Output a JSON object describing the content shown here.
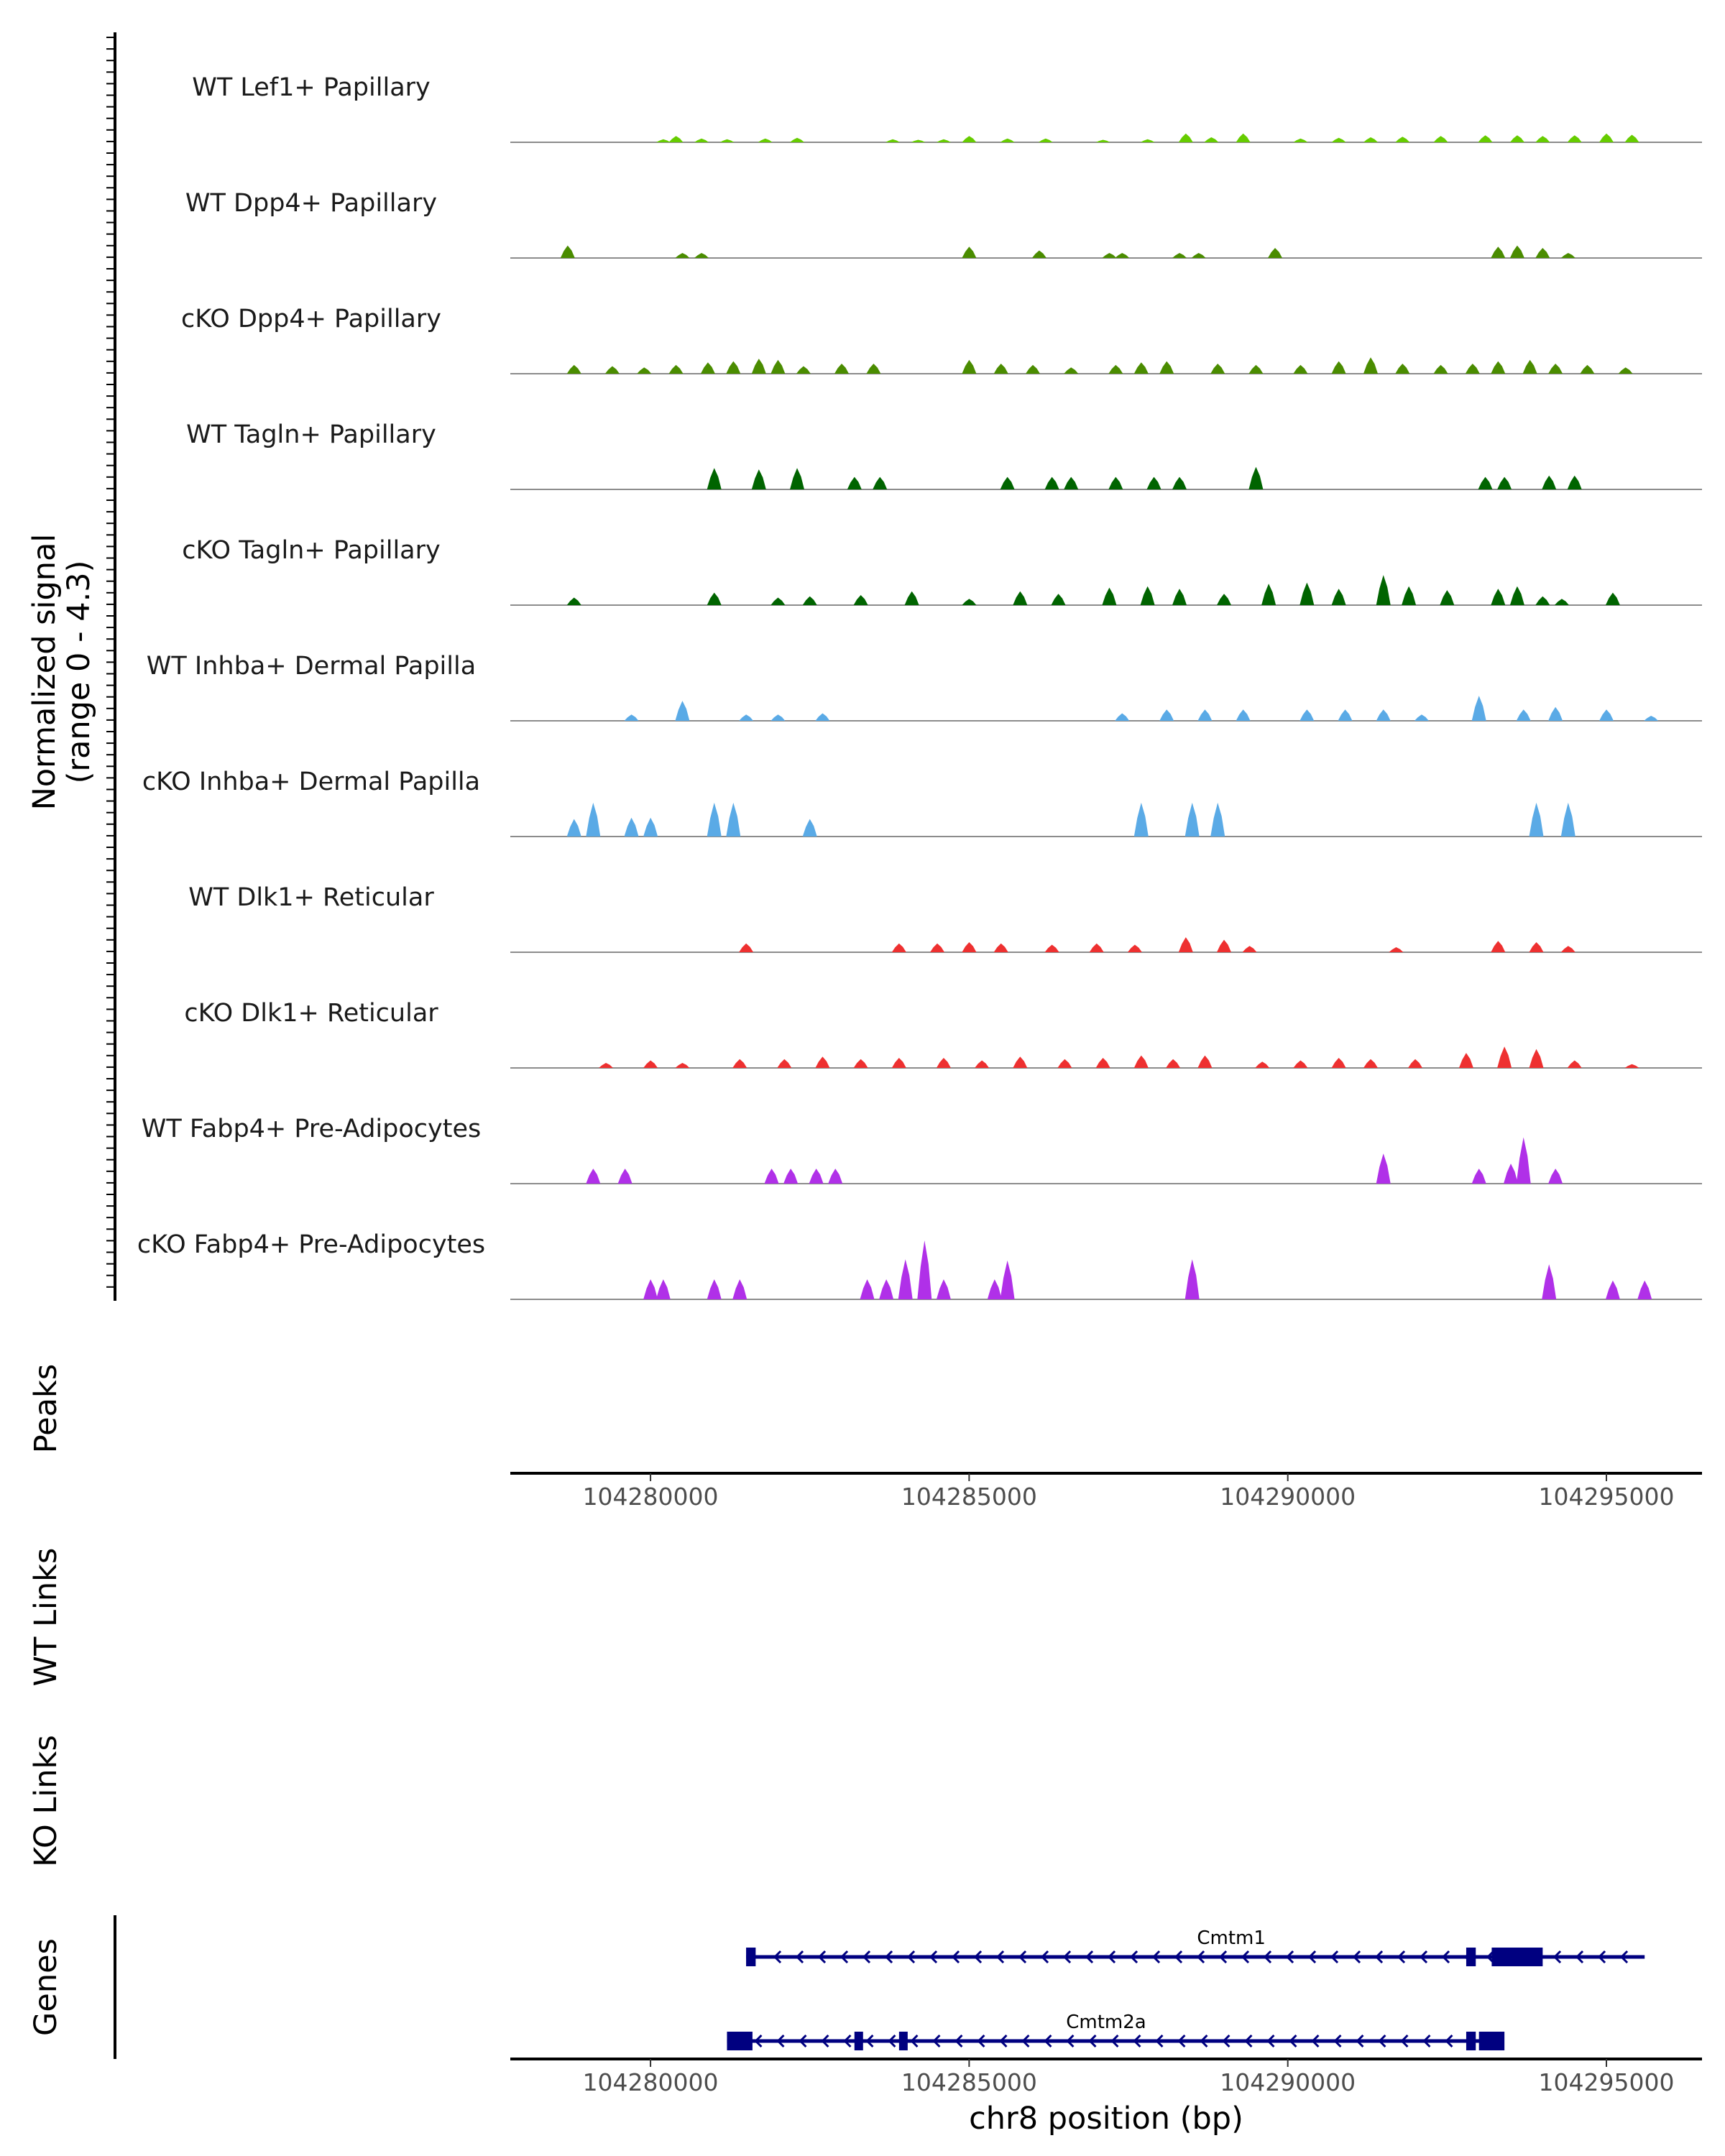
{
  "chart_data": {
    "type": "area",
    "description_region": "chr8:104277800-104296500",
    "xlim": [
      104277800,
      104296500
    ],
    "ylabel_line1": "Normalized signal",
    "ylabel_line2": "(range 0 - 4.3)",
    "y_range": [
      0,
      4.3
    ],
    "xlabel": "chr8 position (bp)",
    "x_ticks": [
      104280000,
      104285000,
      104290000,
      104295000
    ],
    "x_tick_labels": [
      "104280000",
      "104285000",
      "104290000",
      "104295000"
    ],
    "section_labels": {
      "peaks": "Peaks",
      "wt_links": "WT Links",
      "ko_links": "KO Links",
      "genes": "Genes"
    },
    "tracks": [
      {
        "name": "WT Lef1+ Papillary",
        "color": "#66CC00",
        "peaks": [
          [
            104280200,
            0.12
          ],
          [
            104280400,
            0.25
          ],
          [
            104280800,
            0.15
          ],
          [
            104281200,
            0.12
          ],
          [
            104281800,
            0.15
          ],
          [
            104282300,
            0.18
          ],
          [
            104283800,
            0.12
          ],
          [
            104284200,
            0.1
          ],
          [
            104284600,
            0.12
          ],
          [
            104285000,
            0.25
          ],
          [
            104285600,
            0.15
          ],
          [
            104286200,
            0.15
          ],
          [
            104287100,
            0.1
          ],
          [
            104287800,
            0.12
          ],
          [
            104288400,
            0.35
          ],
          [
            104288800,
            0.2
          ],
          [
            104289300,
            0.35
          ],
          [
            104290200,
            0.15
          ],
          [
            104290800,
            0.18
          ],
          [
            104291300,
            0.2
          ],
          [
            104291800,
            0.22
          ],
          [
            104292400,
            0.25
          ],
          [
            104293100,
            0.28
          ],
          [
            104293600,
            0.28
          ],
          [
            104294000,
            0.25
          ],
          [
            104294500,
            0.28
          ],
          [
            104295000,
            0.35
          ],
          [
            104295400,
            0.3
          ]
        ]
      },
      {
        "name": "WT Dpp4+ Papillary",
        "color": "#4A8C00",
        "peaks": [
          [
            104278700,
            0.5
          ],
          [
            104280500,
            0.2
          ],
          [
            104280800,
            0.2
          ],
          [
            104285000,
            0.45
          ],
          [
            104286100,
            0.3
          ],
          [
            104287200,
            0.2
          ],
          [
            104287400,
            0.2
          ],
          [
            104288300,
            0.2
          ],
          [
            104288600,
            0.2
          ],
          [
            104289800,
            0.4
          ],
          [
            104293300,
            0.45
          ],
          [
            104293600,
            0.5
          ],
          [
            104294000,
            0.4
          ],
          [
            104294400,
            0.2
          ]
        ]
      },
      {
        "name": "cKO Dpp4+ Papillary",
        "color": "#4A8C00",
        "peaks": [
          [
            104278800,
            0.35
          ],
          [
            104279400,
            0.3
          ],
          [
            104279900,
            0.25
          ],
          [
            104280400,
            0.35
          ],
          [
            104280900,
            0.45
          ],
          [
            104281300,
            0.5
          ],
          [
            104281700,
            0.6
          ],
          [
            104282000,
            0.55
          ],
          [
            104282400,
            0.3
          ],
          [
            104283000,
            0.4
          ],
          [
            104283500,
            0.4
          ],
          [
            104285000,
            0.55
          ],
          [
            104285500,
            0.4
          ],
          [
            104286000,
            0.35
          ],
          [
            104286600,
            0.25
          ],
          [
            104287300,
            0.35
          ],
          [
            104287700,
            0.45
          ],
          [
            104288100,
            0.5
          ],
          [
            104288900,
            0.4
          ],
          [
            104289500,
            0.35
          ],
          [
            104290200,
            0.35
          ],
          [
            104290800,
            0.5
          ],
          [
            104291300,
            0.65
          ],
          [
            104291800,
            0.4
          ],
          [
            104292400,
            0.35
          ],
          [
            104292900,
            0.4
          ],
          [
            104293300,
            0.5
          ],
          [
            104293800,
            0.55
          ],
          [
            104294200,
            0.4
          ],
          [
            104294700,
            0.35
          ],
          [
            104295300,
            0.25
          ]
        ]
      },
      {
        "name": "WT Tagln+ Papillary",
        "color": "#006400",
        "peaks": [
          [
            104281000,
            0.85
          ],
          [
            104281700,
            0.8
          ],
          [
            104282300,
            0.85
          ],
          [
            104283200,
            0.5
          ],
          [
            104283600,
            0.5
          ],
          [
            104285600,
            0.5
          ],
          [
            104286300,
            0.5
          ],
          [
            104286600,
            0.5
          ],
          [
            104287300,
            0.5
          ],
          [
            104287900,
            0.5
          ],
          [
            104288300,
            0.5
          ],
          [
            104289500,
            0.9
          ],
          [
            104293100,
            0.5
          ],
          [
            104293400,
            0.5
          ],
          [
            104294100,
            0.55
          ],
          [
            104294500,
            0.55
          ]
        ]
      },
      {
        "name": "cKO Tagln+ Papillary",
        "color": "#006400",
        "peaks": [
          [
            104278800,
            0.3
          ],
          [
            104281000,
            0.5
          ],
          [
            104282000,
            0.3
          ],
          [
            104282500,
            0.35
          ],
          [
            104283300,
            0.4
          ],
          [
            104284100,
            0.55
          ],
          [
            104285000,
            0.25
          ],
          [
            104285800,
            0.55
          ],
          [
            104286400,
            0.45
          ],
          [
            104287200,
            0.7
          ],
          [
            104287800,
            0.75
          ],
          [
            104288300,
            0.65
          ],
          [
            104289000,
            0.45
          ],
          [
            104289700,
            0.85
          ],
          [
            104290300,
            0.9
          ],
          [
            104290800,
            0.65
          ],
          [
            104291500,
            1.2
          ],
          [
            104291900,
            0.75
          ],
          [
            104292500,
            0.6
          ],
          [
            104293300,
            0.65
          ],
          [
            104293600,
            0.75
          ],
          [
            104294000,
            0.35
          ],
          [
            104294300,
            0.25
          ],
          [
            104295100,
            0.5
          ]
        ]
      },
      {
        "name": "WT Inhba+ Dermal Papilla",
        "color": "#5AAAE6",
        "peaks": [
          [
            104279700,
            0.25
          ],
          [
            104280500,
            0.8
          ],
          [
            104281500,
            0.25
          ],
          [
            104282000,
            0.25
          ],
          [
            104282700,
            0.3
          ],
          [
            104287400,
            0.3
          ],
          [
            104288100,
            0.45
          ],
          [
            104288700,
            0.45
          ],
          [
            104289300,
            0.45
          ],
          [
            104290300,
            0.45
          ],
          [
            104290900,
            0.45
          ],
          [
            104291500,
            0.45
          ],
          [
            104292100,
            0.25
          ],
          [
            104293000,
            1.0
          ],
          [
            104293700,
            0.45
          ],
          [
            104294200,
            0.55
          ],
          [
            104295000,
            0.45
          ],
          [
            104295700,
            0.2
          ]
        ]
      },
      {
        "name": "cKO Inhba+ Dermal Papilla",
        "color": "#5AAAE6",
        "peaks": [
          [
            104278800,
            0.7
          ],
          [
            104279100,
            1.35
          ],
          [
            104279700,
            0.75
          ],
          [
            104280000,
            0.75
          ],
          [
            104281000,
            1.35
          ],
          [
            104281300,
            1.35
          ],
          [
            104282500,
            0.7
          ],
          [
            104287700,
            1.35
          ],
          [
            104288500,
            1.35
          ],
          [
            104288900,
            1.35
          ],
          [
            104293900,
            1.35
          ],
          [
            104294400,
            1.35
          ]
        ]
      },
      {
        "name": "WT Dlk1+ Reticular",
        "color": "#EE3030",
        "peaks": [
          [
            104281500,
            0.35
          ],
          [
            104283900,
            0.35
          ],
          [
            104284500,
            0.35
          ],
          [
            104285000,
            0.4
          ],
          [
            104285500,
            0.35
          ],
          [
            104286300,
            0.3
          ],
          [
            104287000,
            0.35
          ],
          [
            104287600,
            0.3
          ],
          [
            104288400,
            0.6
          ],
          [
            104289000,
            0.5
          ],
          [
            104289400,
            0.25
          ],
          [
            104291700,
            0.2
          ],
          [
            104293300,
            0.45
          ],
          [
            104293900,
            0.4
          ],
          [
            104294400,
            0.25
          ]
        ]
      },
      {
        "name": "cKO Dlk1+ Reticular",
        "color": "#EE3030",
        "peaks": [
          [
            104279300,
            0.2
          ],
          [
            104280000,
            0.3
          ],
          [
            104280500,
            0.2
          ],
          [
            104281400,
            0.35
          ],
          [
            104282100,
            0.35
          ],
          [
            104282700,
            0.45
          ],
          [
            104283300,
            0.35
          ],
          [
            104283900,
            0.4
          ],
          [
            104284600,
            0.4
          ],
          [
            104285200,
            0.3
          ],
          [
            104285800,
            0.45
          ],
          [
            104286500,
            0.35
          ],
          [
            104287100,
            0.4
          ],
          [
            104287700,
            0.5
          ],
          [
            104288200,
            0.35
          ],
          [
            104288700,
            0.5
          ],
          [
            104289600,
            0.25
          ],
          [
            104290200,
            0.3
          ],
          [
            104290800,
            0.4
          ],
          [
            104291300,
            0.35
          ],
          [
            104292000,
            0.35
          ],
          [
            104292800,
            0.6
          ],
          [
            104293400,
            0.85
          ],
          [
            104293900,
            0.75
          ],
          [
            104294500,
            0.3
          ],
          [
            104295400,
            0.15
          ]
        ]
      },
      {
        "name": "WT Fabp4+ Pre-Adipocytes",
        "color": "#B030E8",
        "peaks": [
          [
            104279100,
            0.6
          ],
          [
            104279600,
            0.6
          ],
          [
            104281900,
            0.6
          ],
          [
            104282200,
            0.6
          ],
          [
            104282600,
            0.6
          ],
          [
            104282900,
            0.6
          ],
          [
            104291500,
            1.2
          ],
          [
            104293000,
            0.6
          ],
          [
            104293500,
            0.8
          ],
          [
            104293700,
            1.85
          ],
          [
            104294200,
            0.6
          ]
        ]
      },
      {
        "name": "cKO Fabp4+ Pre-Adipocytes",
        "color": "#B030E8",
        "peaks": [
          [
            104280000,
            0.8
          ],
          [
            104280200,
            0.8
          ],
          [
            104281000,
            0.8
          ],
          [
            104281400,
            0.8
          ],
          [
            104283400,
            0.8
          ],
          [
            104283700,
            0.8
          ],
          [
            104284000,
            1.6
          ],
          [
            104284300,
            2.35
          ],
          [
            104284600,
            0.8
          ],
          [
            104285400,
            0.8
          ],
          [
            104285600,
            1.55
          ],
          [
            104288500,
            1.6
          ],
          [
            104294100,
            1.4
          ],
          [
            104295100,
            0.75
          ],
          [
            104295600,
            0.75
          ]
        ]
      }
    ],
    "genes": [
      {
        "name": "Cmtm1",
        "start": 104281500,
        "end": 104295600,
        "strand": "-",
        "exons": [
          [
            104281500,
            104281650
          ],
          [
            104292800,
            104292950
          ],
          [
            104293200,
            104294000
          ]
        ]
      },
      {
        "name": "Cmtm2a",
        "start": 104281200,
        "end": 104293100,
        "strand": "-",
        "exons": [
          [
            104281200,
            104281600
          ],
          [
            104283200,
            104283300
          ],
          [
            104283900,
            104284000
          ],
          [
            104292800,
            104292950
          ],
          [
            104293000,
            104293400
          ]
        ]
      }
    ]
  }
}
